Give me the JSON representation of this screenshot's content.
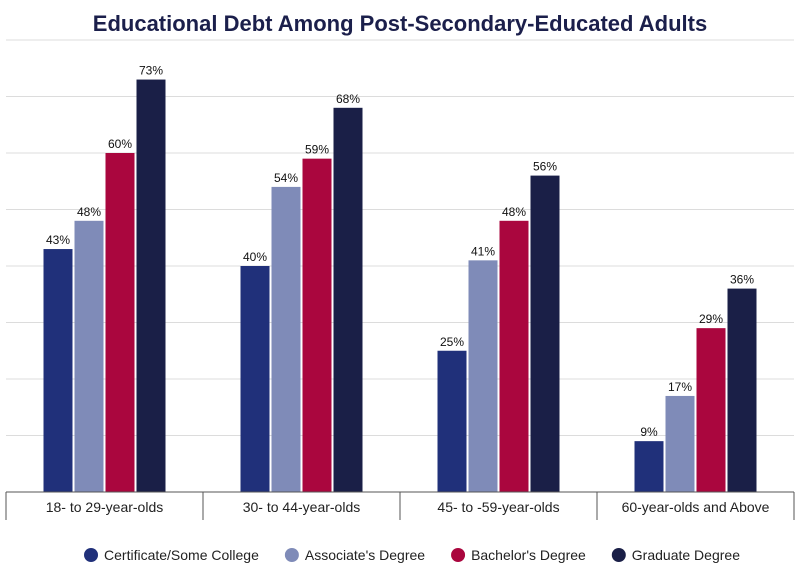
{
  "chart_data": {
    "type": "bar",
    "title": "Educational Debt Among Post-Secondary-Educated Adults",
    "categories": [
      "18- to 29-year-olds",
      "30- to 44-year-olds",
      "45- to -59-year-olds",
      "60-year-olds and Above"
    ],
    "series": [
      {
        "name": "Certificate/Some College",
        "color": "#20307a",
        "values": [
          43,
          40,
          25,
          9
        ]
      },
      {
        "name": "Associate's Degree",
        "color": "#7f8bb8",
        "values": [
          48,
          54,
          41,
          17
        ]
      },
      {
        "name": "Bachelor's Degree",
        "color": "#aa063e",
        "values": [
          60,
          59,
          48,
          29
        ]
      },
      {
        "name": "Graduate Degree",
        "color": "#1a1f47",
        "values": [
          73,
          68,
          56,
          36
        ]
      }
    ],
    "value_suffix": "%",
    "ylim": [
      0,
      80
    ],
    "grid": true,
    "legend_position": "bottom"
  }
}
